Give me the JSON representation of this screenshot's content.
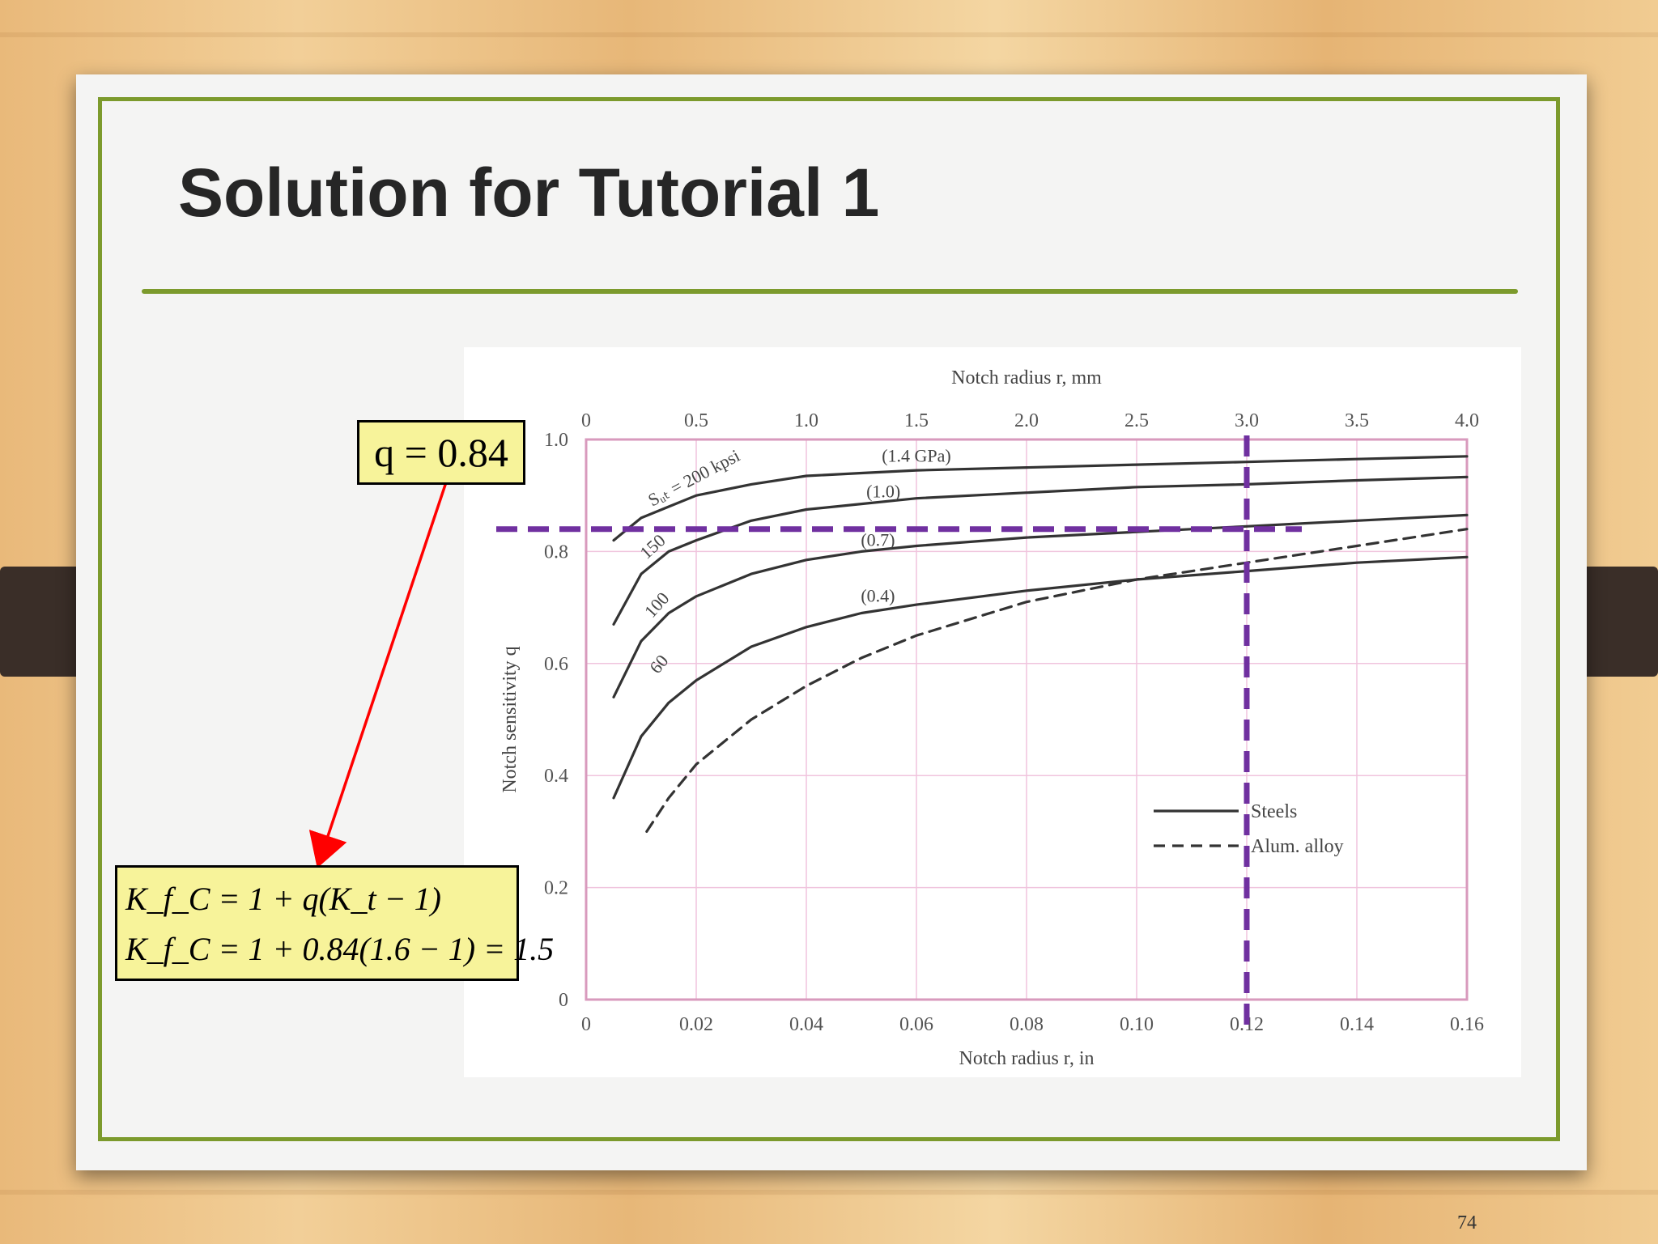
{
  "slide": {
    "title": "Solution for Tutorial 1",
    "page_number": "74",
    "q_box": "q = 0.84",
    "formula_line1": "K_f_C = 1 + q(K_t − 1)",
    "formula_line2": "K_f_C = 1 + 0.84(1.6 − 1) = 1.5",
    "colors": {
      "accent": "#7c9a2c",
      "callout_fill": "#f7f39a",
      "arrow": "#ff0000",
      "guide": "#7030a0"
    }
  },
  "chart_data": {
    "type": "line",
    "title": "",
    "xlabel": "Notch radius r, in",
    "x2label": "Notch radius r, mm",
    "ylabel": "Notch sensitivity q",
    "xlim": [
      0,
      0.16
    ],
    "x2lim": [
      0,
      4.0
    ],
    "ylim": [
      0,
      1.0
    ],
    "x_ticks": [
      "0",
      "0.02",
      "0.04",
      "0.06",
      "0.08",
      "0.10",
      "0.12",
      "0.14",
      "0.16"
    ],
    "x2_ticks": [
      "0",
      "0.5",
      "1.0",
      "1.5",
      "2.0",
      "2.5",
      "3.0",
      "3.5",
      "4.0"
    ],
    "y_ticks": [
      "0",
      "0.2",
      "0.4",
      "0.6",
      "0.8",
      "1.0"
    ],
    "grid": true,
    "series": [
      {
        "name": "Steels",
        "label": "Sᵤₜ = 200 kpsi",
        "label2": "(1.4 GPa)",
        "style": "solid",
        "x": [
          0.005,
          0.01,
          0.015,
          0.02,
          0.03,
          0.04,
          0.05,
          0.06,
          0.08,
          0.1,
          0.12,
          0.14,
          0.16
        ],
        "y": [
          0.82,
          0.86,
          0.88,
          0.9,
          0.92,
          0.935,
          0.94,
          0.945,
          0.95,
          0.955,
          0.96,
          0.965,
          0.97
        ]
      },
      {
        "name": "Steels",
        "label": "150",
        "label2": "(1.0)",
        "style": "solid",
        "x": [
          0.005,
          0.01,
          0.015,
          0.02,
          0.03,
          0.04,
          0.05,
          0.06,
          0.08,
          0.1,
          0.12,
          0.14,
          0.16
        ],
        "y": [
          0.67,
          0.76,
          0.8,
          0.82,
          0.855,
          0.875,
          0.885,
          0.895,
          0.905,
          0.915,
          0.92,
          0.927,
          0.933
        ]
      },
      {
        "name": "Steels",
        "label": "100",
        "label2": "(0.7)",
        "style": "solid",
        "x": [
          0.005,
          0.01,
          0.015,
          0.02,
          0.03,
          0.04,
          0.05,
          0.06,
          0.08,
          0.1,
          0.12,
          0.14,
          0.16
        ],
        "y": [
          0.54,
          0.64,
          0.69,
          0.72,
          0.76,
          0.785,
          0.8,
          0.81,
          0.825,
          0.835,
          0.845,
          0.855,
          0.865
        ]
      },
      {
        "name": "Steels",
        "label": "60",
        "label2": "(0.4)",
        "style": "solid",
        "x": [
          0.005,
          0.01,
          0.015,
          0.02,
          0.03,
          0.04,
          0.05,
          0.06,
          0.08,
          0.1,
          0.12,
          0.14,
          0.16
        ],
        "y": [
          0.36,
          0.47,
          0.53,
          0.57,
          0.63,
          0.665,
          0.69,
          0.705,
          0.73,
          0.75,
          0.765,
          0.78,
          0.79
        ]
      },
      {
        "name": "Alum. alloy",
        "label": "",
        "label2": "",
        "style": "dashed",
        "x": [
          0.011,
          0.015,
          0.02,
          0.03,
          0.04,
          0.05,
          0.06,
          0.08,
          0.1,
          0.12,
          0.14,
          0.16
        ],
        "y": [
          0.3,
          0.36,
          0.42,
          0.5,
          0.56,
          0.61,
          0.65,
          0.71,
          0.75,
          0.78,
          0.81,
          0.84
        ]
      }
    ],
    "legend": {
      "placement": "bottom-right",
      "entries": [
        "Steels",
        "Alum. alloy"
      ]
    },
    "guide_lines": {
      "x": 0.12,
      "y": 0.84
    }
  }
}
